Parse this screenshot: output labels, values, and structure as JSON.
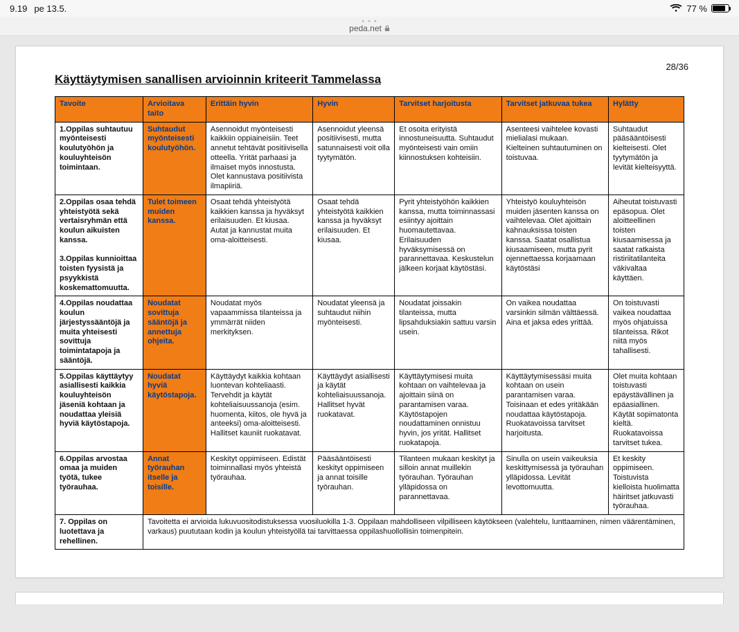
{
  "status": {
    "time": "9.19",
    "date": "pe 13.5.",
    "battery_pct": "77 %",
    "url": "peda.net"
  },
  "page": {
    "page_indicator": "28/36",
    "title": "Käyttäytymisen sanallisen arvioinnin kriteerit Tammelassa"
  },
  "colors": {
    "header_bg": "#f07d16",
    "header_text": "#0a3a8a",
    "border": "#000000",
    "sheet_bg": "#ffffff",
    "body_bg": "#e8e8e8"
  },
  "columns": [
    "Tavoite",
    "Arvioitava taito",
    "Erittäin hyvin",
    "Hyvin",
    "Tarvitset harjoitusta",
    "Tarvitset jatkuvaa tukea",
    "Hylätty"
  ],
  "rows": [
    {
      "tavoite": "1.Oppilas suhtautuu myönteisesti koulutyöhön ja kouluyhteisön toimintaan.",
      "arvioitava": "Suhtaudut myönteisesti koulutyöhön.",
      "c": [
        "Asennoidut myönteisesti kaikkiin oppiaineisiin. Teet annetut tehtävät positiivisella otteella. Yrität parhaasi ja ilmaiset myös innostusta. Olet kannustava positiivista ilmapiiriä.",
        "Asennoidut yleensä positiivisesti, mutta satunnaisesti voit olla tyytymätön.",
        "Et osoita erityistä innostuneisuutta. Suhtaudut myönteisesti vain omiin kiinnostuksen kohteisiin.",
        "Asenteesi vaihtelee kovasti mielialasi mukaan. Kielteinen suhtautuminen on toistuvaa.",
        "Suhtaudut pääsääntöisesti kielteisesti. Olet tyytymätön ja levität kielteisyyttä."
      ]
    },
    {
      "tavoite": "2.Oppilas osaa tehdä yhteistyötä sekä vertaisryhmän että koulun aikuisten kanssa.\n\n3.Oppilas kunnioittaa toisten fyysistä ja psyykkistä koskemattomuutta.",
      "arvioitava": "Tulet toimeen muiden kanssa.",
      "c": [
        "Osaat tehdä yhteistyötä kaikkien kanssa ja hyväksyt erilaisuuden. Et kiusaa. Autat ja kannustat muita oma-aloitteisesti.",
        "Osaat tehdä yhteistyötä kaikkien kanssa ja hyväksyt erilaisuuden. Et kiusaa.",
        "Pyrit yhteistyöhön kaikkien kanssa, mutta toiminnassasi esiintyy ajoittain huomautettavaa. Erilaisuuden hyväksymisessä on parannettavaa. Keskustelun jälkeen korjaat käytöstäsi.",
        "Yhteistyö kouluyhteisön muiden jäsenten kanssa on vaihtelevaa. Olet ajoittain kahnauksissa toisten kanssa. Saatat osallistua kiusaamiseen, mutta pyrit ojennettaessa korjaamaan käytöstäsi",
        "Aiheutat toistuvasti epäsopua. Olet aloitteellinen toisten kiusaamisessa ja saatat ratkaista ristiriitatilanteita väkivaltaa käyttäen."
      ]
    },
    {
      "tavoite": "4.Oppilas noudattaa koulun järjestyssääntöjä ja muita yhteisesti sovittuja toimintatapoja ja sääntöjä.",
      "arvioitava": "Noudatat sovittuja sääntöjä ja annettuja ohjeita.",
      "c": [
        "Noudatat myös vapaammissa tilanteissa ja ymmärrät niiden merkityksen.",
        "Noudatat yleensä ja suhtaudut niihin myönteisesti.",
        "Noudatat joissakin tilanteissa, mutta lipsahduksiakin sattuu varsin usein.",
        "On vaikea noudattaa varsinkin silmän välttäessä. Aina et jaksa edes yrittää.",
        "On toistuvasti vaikea noudattaa myös ohjatuissa tilanteissa. Rikot niitä myös tahallisesti."
      ]
    },
    {
      "tavoite": "5.Oppilas käyttäytyy asiallisesti kaikkia kouluyhteisön jäseniä kohtaan ja noudattaa yleisiä hyviä käytöstapoja.",
      "arvioitava": "Noudatat hyviä käytöstapoja.",
      "c": [
        "Käyttäydyt kaikkia kohtaan luontevan kohteliaasti. Tervehdit ja käytät kohteliaisuussanoja (esim. huomenta, kiitos, ole hyvä ja anteeksi) oma-aloitteisesti. Hallitset kauniit ruokatavat.",
        "Käyttäydyt asiallisesti ja käytät kohteliaisuussanoja. Hallitset hyvät ruokatavat.",
        "Käyttäytymisesi muita kohtaan on vaihtelevaa ja ajoittain siinä on parantamisen varaa. Käytöstapojen noudattaminen onnistuu hyvin, jos yrität. Hallitset ruokatapoja.",
        "Käyttäytymisessäsi muita kohtaan on usein parantamisen varaa. Toisinaan et edes yritäkään noudattaa käytöstapoja. Ruokatavoissa tarvitset harjoitusta.",
        "Olet muita kohtaan toistuvasti epäystävällinen ja epäasiallinen. Käytät sopimatonta kieltä. Ruokatavoissa tarvitset tukea."
      ]
    },
    {
      "tavoite": "6.Oppilas arvostaa omaa ja muiden työtä, tukee työrauhaa.",
      "arvioitava": "Annat työrauhan itselle ja toisille.",
      "c": [
        "Keskityt oppimiseen. Edistät toiminnallasi myös yhteistä työrauhaa.",
        "Pääsääntöisesti keskityt oppimiseen ja annat toisille työrauhan.",
        "Tilanteen mukaan keskityt ja silloin annat muillekin työrauhan. Työrauhan ylläpidossa on parannettavaa.",
        "Sinulla on usein vaikeuksia keskittymisessä ja työrauhan ylläpidossa. Levität levottomuutta.",
        "Et keskity oppimiseen. Toistuvista kielloista huolimatta häiritset jatkuvasti työrauhaa."
      ]
    }
  ],
  "row7": {
    "tavoite": "7. Oppilas on luotettava ja rehellinen.",
    "content": "Tavoitetta ei arvioida lukuvuositodistuksessa vuosiluokilla 1-3. Oppilaan mahdolliseen vilpilliseen käytökseen (valehtelu, lunttaaminen, nimen väärentäminen, varkaus) puututaan kodin ja koulun yhteistyöllä tai tarvittaessa oppilashuollollisin toimenpitein."
  }
}
